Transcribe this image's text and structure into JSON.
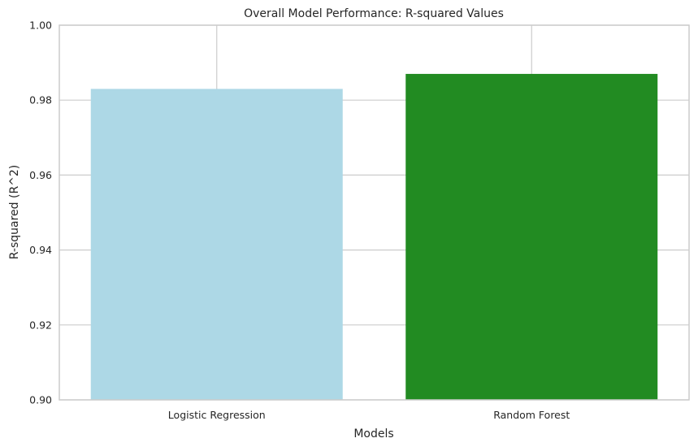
{
  "chart_data": {
    "type": "bar",
    "title": "Overall Model Performance: R-squared Values",
    "xlabel": "Models",
    "ylabel": "R-squared (R^2)",
    "categories": [
      "Logistic Regression",
      "Random Forest"
    ],
    "values": [
      0.983,
      0.987
    ],
    "bar_colors": [
      "#add8e6",
      "#228b22"
    ],
    "ylim": [
      0.9,
      1.0
    ],
    "yticks": [
      "0.90",
      "0.92",
      "0.94",
      "0.96",
      "0.98",
      "1.00"
    ],
    "grid": true,
    "legend": "none"
  },
  "colors": {
    "grid": "#cccccc",
    "spine": "#cccccc",
    "text": "#262626",
    "background": "#ffffff"
  }
}
